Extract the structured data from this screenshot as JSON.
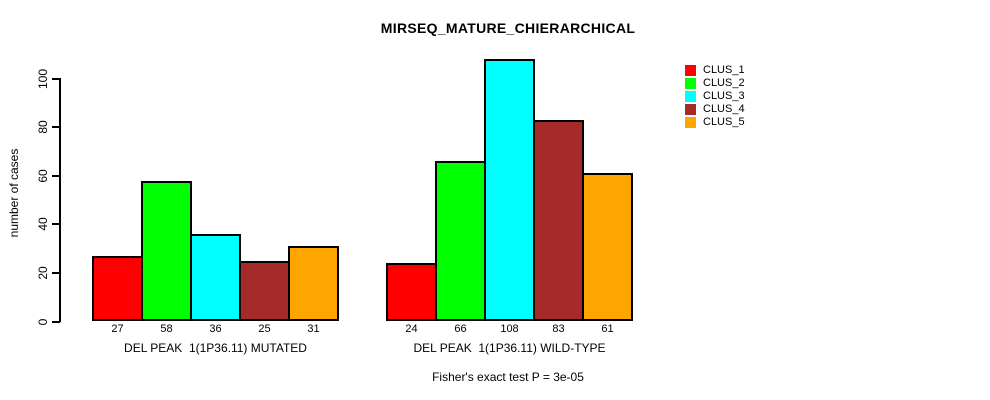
{
  "chart_data": {
    "type": "bar",
    "grouped": true,
    "title": "MIRSEQ_MATURE_CHIERARCHICAL",
    "ylabel": "number of cases",
    "xlabel": "",
    "ylim": [
      0,
      108
    ],
    "yticks": [
      0,
      20,
      40,
      60,
      80,
      100
    ],
    "grid": false,
    "legend_position": "topright",
    "categories": [
      "DEL PEAK  1(1P36.11) MUTATED",
      "DEL PEAK  1(1P36.11) WILD-TYPE"
    ],
    "series": [
      {
        "name": "CLUS_1",
        "color": "#FF0000",
        "values": [
          27,
          24
        ]
      },
      {
        "name": "CLUS_2",
        "color": "#00FF00",
        "values": [
          58,
          66
        ]
      },
      {
        "name": "CLUS_3",
        "color": "#00FFFF",
        "values": [
          36,
          108
        ]
      },
      {
        "name": "CLUS_4",
        "color": "#A52A2A",
        "values": [
          25,
          83
        ]
      },
      {
        "name": "CLUS_5",
        "color": "#FFA500",
        "values": [
          31,
          61
        ]
      }
    ],
    "bar_value_labels_shown": true,
    "annotation": "Fisher's exact test P = 3e-05"
  },
  "colors": {
    "background": "#FFFFFF",
    "axis": "#000000",
    "text": "#000000"
  }
}
